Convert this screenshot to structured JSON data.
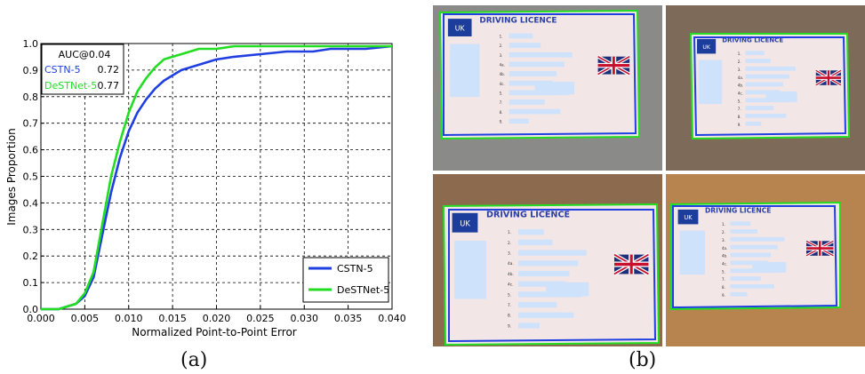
{
  "chart_data": {
    "type": "line",
    "xlabel": "Normalized Point-to-Point Error",
    "ylabel": "Images Proportion",
    "xlim": [
      0.0,
      0.04
    ],
    "ylim": [
      0.0,
      1.0
    ],
    "x_ticks": [
      "0.000",
      "0.005",
      "0.010",
      "0.015",
      "0.020",
      "0.025",
      "0.030",
      "0.035",
      "0.040"
    ],
    "y_ticks": [
      "0.0",
      "0.1",
      "0.2",
      "0.3",
      "0.4",
      "0.5",
      "0.6",
      "0.7",
      "0.8",
      "0.9",
      "1.0"
    ],
    "grid": true,
    "series": [
      {
        "name": "CSTN-5",
        "color": "#1f3fe0",
        "x": [
          0.0,
          0.002,
          0.003,
          0.004,
          0.005,
          0.006,
          0.007,
          0.008,
          0.009,
          0.01,
          0.011,
          0.012,
          0.013,
          0.014,
          0.015,
          0.016,
          0.017,
          0.018,
          0.019,
          0.02,
          0.022,
          0.025,
          0.028,
          0.031,
          0.033,
          0.035,
          0.037,
          0.04
        ],
        "y": [
          0.0,
          0.0,
          0.01,
          0.02,
          0.05,
          0.12,
          0.28,
          0.44,
          0.57,
          0.67,
          0.74,
          0.79,
          0.83,
          0.86,
          0.88,
          0.9,
          0.91,
          0.92,
          0.93,
          0.94,
          0.95,
          0.96,
          0.97,
          0.97,
          0.98,
          0.98,
          0.98,
          0.99
        ]
      },
      {
        "name": "DeSTNet-5",
        "color": "#22dd22",
        "x": [
          0.0,
          0.002,
          0.003,
          0.004,
          0.005,
          0.006,
          0.007,
          0.008,
          0.009,
          0.01,
          0.011,
          0.012,
          0.013,
          0.014,
          0.015,
          0.016,
          0.017,
          0.018,
          0.02,
          0.022,
          0.025,
          0.03,
          0.035,
          0.04
        ],
        "y": [
          0.0,
          0.0,
          0.01,
          0.02,
          0.06,
          0.14,
          0.32,
          0.5,
          0.63,
          0.74,
          0.82,
          0.87,
          0.91,
          0.94,
          0.95,
          0.96,
          0.97,
          0.98,
          0.98,
          0.99,
          0.99,
          0.99,
          0.99,
          0.99
        ]
      }
    ],
    "auc_box": {
      "header": "AUC@0.04",
      "rows": [
        {
          "name": "CSTN-5",
          "value": "0.72",
          "color": "#1f3fe0"
        },
        {
          "name": "DeSTNet-5",
          "value": "0.77",
          "color": "#22dd22"
        }
      ]
    },
    "legend": "bottom-right"
  },
  "captions": {
    "a": "(a)",
    "b": "(b)"
  },
  "photos": [
    {
      "title": "DRIVING LICENCE",
      "badge": "UK",
      "numbers": [
        "1.",
        "2.",
        "3.",
        "4a.",
        "4b.",
        "4c.",
        "5.",
        "7.",
        "8.",
        "9."
      ]
    },
    {
      "title": "DRIVING LICENCE",
      "badge": "UK",
      "numbers": [
        "1.",
        "2.",
        "3.",
        "4a.",
        "4b.",
        "4c.",
        "5.",
        "7.",
        "8.",
        "9."
      ]
    },
    {
      "title": "DRIVING LICENCE",
      "badge": "UK",
      "numbers": [
        "1.",
        "2.",
        "3.",
        "4a.",
        "4b.",
        "4c.",
        "5.",
        "7.",
        "8.",
        "9."
      ]
    },
    {
      "title": "DRIVING LICENCE",
      "badge": "UK",
      "numbers": [
        "1.",
        "2.",
        "3.",
        "4a.",
        "4b.",
        "4c.",
        "5.",
        "7.",
        "8.",
        "9."
      ]
    }
  ]
}
